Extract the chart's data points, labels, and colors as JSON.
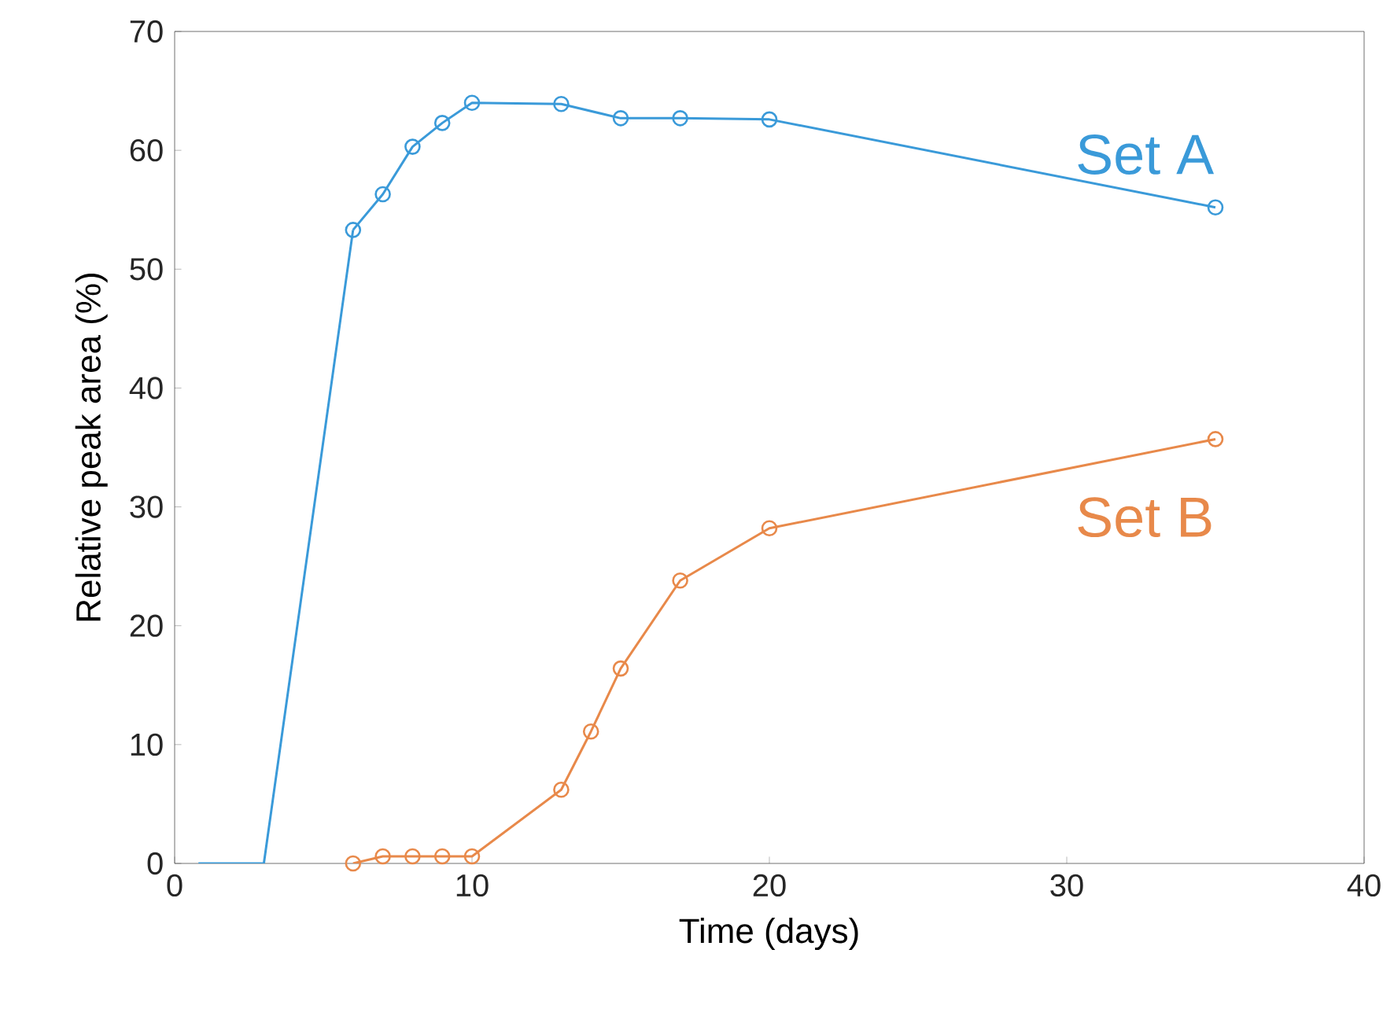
{
  "chart_data": {
    "type": "line",
    "xlabel": "Time (days)",
    "ylabel": "Relative peak area (%)",
    "xlim": [
      0,
      40
    ],
    "ylim": [
      0,
      70
    ],
    "xticks": [
      0,
      10,
      20,
      30,
      40
    ],
    "yticks": [
      0,
      10,
      20,
      30,
      40,
      50,
      60,
      70
    ],
    "grid": false,
    "legend": false,
    "marker": "circle",
    "line_style": "solid",
    "series": [
      {
        "color": "#3a9ad9",
        "x": [
          0.8,
          3,
          6
        ],
        "values": [
          0,
          0,
          53.3
        ],
        "marker": "none"
      },
      {
        "name": "Set A",
        "color": "#3a9ad9",
        "x": [
          6,
          7,
          8,
          9,
          10,
          13,
          15,
          17,
          20,
          35
        ],
        "values": [
          53.3,
          56.3,
          60.3,
          62.3,
          64.0,
          63.9,
          62.7,
          62.7,
          62.6,
          55.2
        ]
      },
      {
        "name": "Set B",
        "color": "#e8894a",
        "x": [
          6,
          7,
          8,
          9,
          10,
          13,
          14,
          15,
          17,
          20,
          35
        ],
        "values": [
          0,
          0.6,
          0.6,
          0.6,
          0.6,
          6.2,
          11.1,
          16.4,
          23.8,
          28.2,
          35.7
        ]
      }
    ]
  }
}
